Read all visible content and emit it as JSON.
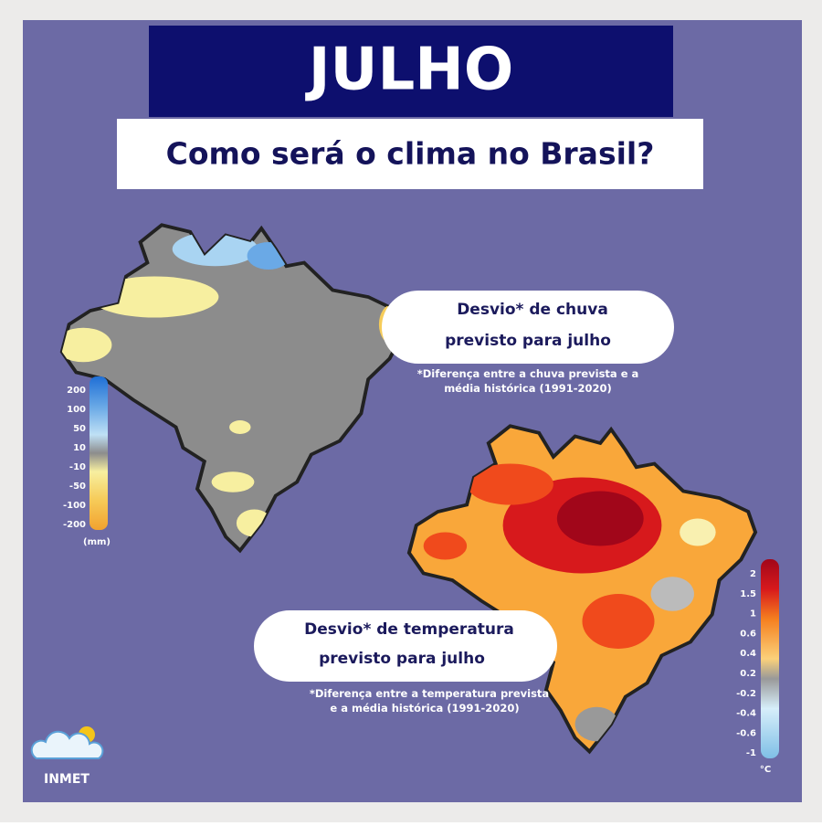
{
  "header": {
    "title": "JULHO",
    "subtitle": "Como será o clima no Brasil?"
  },
  "rain": {
    "title_line1": "Desvio* de chuva",
    "title_line2": "previsto para julho",
    "note_line1": "*Diferença entre a chuva prevista e a",
    "note_line2": "média histórica (1991-2020)",
    "legend": [
      "200",
      "100",
      "50",
      "10",
      "-10",
      "-50",
      "-100",
      "-200"
    ],
    "unit": "(mm)"
  },
  "temperature": {
    "title_line1": "Desvio* de temperatura",
    "title_line2": "previsto para julho",
    "note_line1": "*Diferença entre a temperatura prevista",
    "note_line2": "e a média histórica (1991-2020)",
    "legend": [
      "2",
      "1.5",
      "1",
      "0.6",
      "0.4",
      "0.2",
      "-0.2",
      "-0.4",
      "-0.6",
      "-1"
    ],
    "unit": "°C"
  },
  "logo": "INMET"
}
